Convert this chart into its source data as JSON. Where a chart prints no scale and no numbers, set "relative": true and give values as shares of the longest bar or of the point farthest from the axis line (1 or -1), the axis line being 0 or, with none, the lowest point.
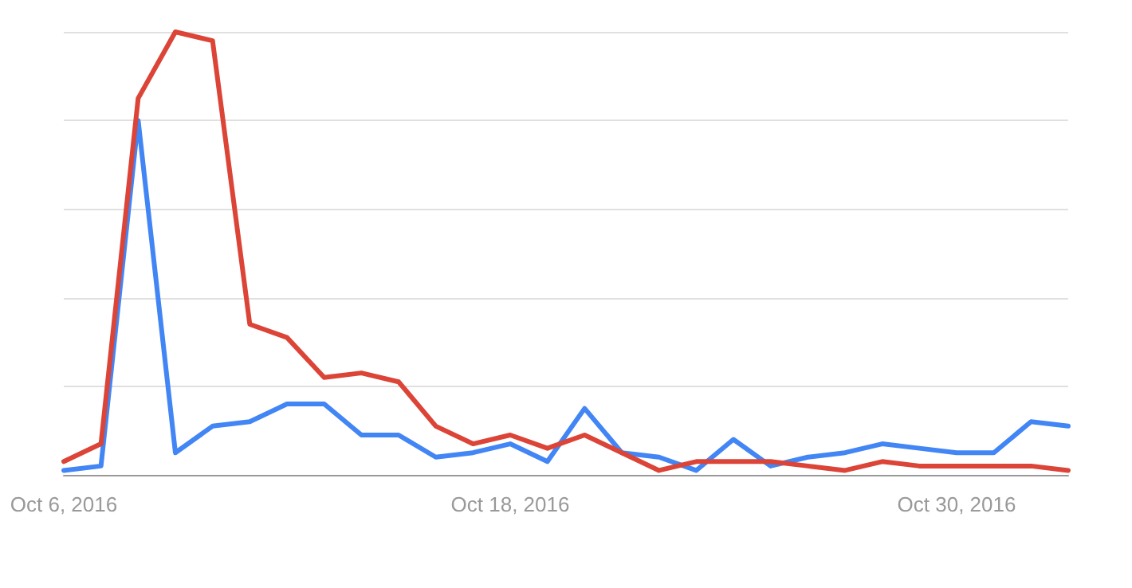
{
  "chart_data": {
    "type": "line",
    "relative": true,
    "grid": "y",
    "marker": "none",
    "line_style": "solid",
    "categories": [
      "Oct 6, 2016",
      null,
      null,
      null,
      null,
      null,
      null,
      null,
      null,
      null,
      null,
      null,
      "Oct 18, 2016",
      null,
      null,
      null,
      null,
      null,
      null,
      null,
      null,
      null,
      null,
      null,
      "Oct 30, 2016",
      null,
      null,
      null
    ],
    "series": [
      {
        "color": "#4285f4",
        "values": [
          0.01,
          0.02,
          0.8,
          0.05,
          0.11,
          0.12,
          0.16,
          0.16,
          0.09,
          0.09,
          0.04,
          0.05,
          0.07,
          0.03,
          0.15,
          0.05,
          0.04,
          0.01,
          0.08,
          0.02,
          0.04,
          0.05,
          0.07,
          0.06,
          0.05,
          0.05,
          0.12,
          0.11
        ]
      },
      {
        "color": "#db4437",
        "values": [
          0.03,
          0.07,
          0.85,
          1.0,
          0.98,
          0.34,
          0.31,
          0.22,
          0.23,
          0.21,
          0.11,
          0.07,
          0.09,
          0.06,
          0.09,
          0.05,
          0.01,
          0.03,
          0.03,
          0.03,
          0.02,
          0.01,
          0.03,
          0.02,
          0.02,
          0.02,
          0.02,
          0.01
        ]
      }
    ]
  }
}
